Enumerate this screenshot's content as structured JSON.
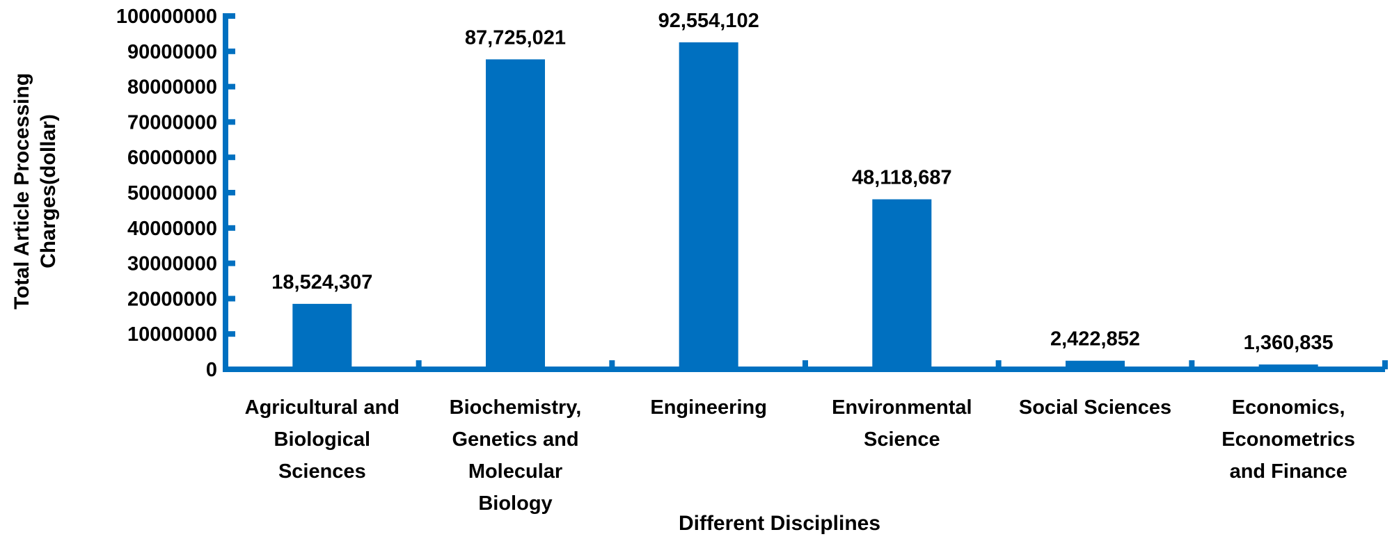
{
  "chart_data": {
    "type": "bar",
    "title": "",
    "xlabel": "Different Disciplines",
    "ylabel_lines": [
      "Total Article Processing",
      "Charges(dollar)"
    ],
    "ylabel": "Total Article Processing Charges(dollar)",
    "ylim": [
      0,
      100000000
    ],
    "yticks": [
      "0",
      "10000000",
      "20000000",
      "30000000",
      "40000000",
      "50000000",
      "60000000",
      "70000000",
      "80000000",
      "90000000",
      "100000000"
    ],
    "ytick_values": [
      0,
      10000000,
      20000000,
      30000000,
      40000000,
      50000000,
      60000000,
      70000000,
      80000000,
      90000000,
      100000000
    ],
    "categories": [
      [
        "Agricultural and",
        "Biological",
        "Sciences"
      ],
      [
        "Biochemistry,",
        "Genetics and",
        "Molecular",
        "Biology"
      ],
      [
        "Engineering"
      ],
      [
        "Environmental",
        "Science"
      ],
      [
        "Social Sciences"
      ],
      [
        "Economics,",
        "Econometrics",
        "and Finance"
      ]
    ],
    "values": [
      18524307,
      87725021,
      92554102,
      48118687,
      2422852,
      1360835
    ],
    "data_labels": [
      "18,524,307",
      "87,725,021",
      "92,554,102",
      "48,118,687",
      "2,422,852",
      "1,360,835"
    ],
    "grid": false,
    "legend": "none",
    "color": "#0070C0"
  }
}
